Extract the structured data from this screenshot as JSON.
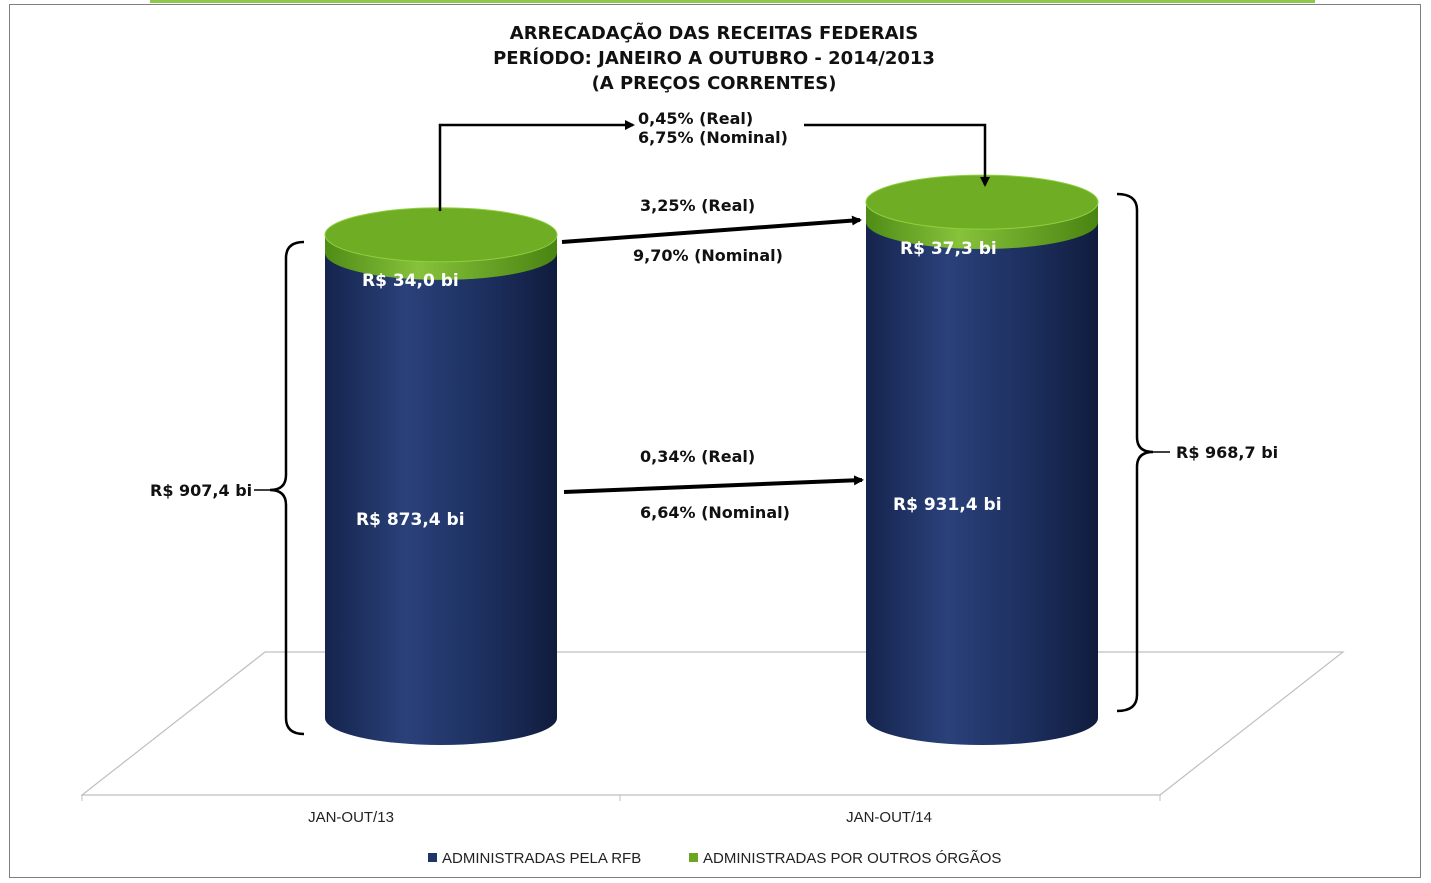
{
  "chart_data": {
    "type": "bar",
    "title": [
      "ARRECADAÇÃO DAS RECEITAS FEDERAIS",
      "PERÍODO: JANEIRO A OUTUBRO - 2014/2013",
      "(A PREÇOS CORRENTES)"
    ],
    "stacked": true,
    "categories": [
      "JAN-OUT/13",
      "JAN-OUT/14"
    ],
    "series": [
      {
        "name": "ADMINISTRADAS PELA RFB",
        "values": [
          873.4,
          931.4
        ],
        "labels": [
          "R$ 873,4  bi",
          "R$ 931,4  bi"
        ],
        "color": "#1f3468"
      },
      {
        "name": "ADMINISTRADAS POR OUTROS ÓRGÃOS",
        "values": [
          34.0,
          37.3
        ],
        "labels": [
          "R$ 34,0  bi",
          "R$ 37,3  bi"
        ],
        "color": "#6aa61f"
      }
    ],
    "totals": [
      907.4,
      968.7
    ],
    "total_labels": [
      "R$ 907,4  bi",
      "R$ 968,7  bi"
    ],
    "annotations": {
      "total_growth": {
        "real": "0,45%  (Real)",
        "nominal": "6,75% (Nominal)"
      },
      "others_growth": {
        "real": "3,25%  (Real)",
        "nominal": "9,70%   (Nominal)"
      },
      "rfb_growth": {
        "real": "0,34% (Real)",
        "nominal": "6,64% (Nominal)"
      }
    },
    "legend_position": "bottom",
    "grid": false
  }
}
